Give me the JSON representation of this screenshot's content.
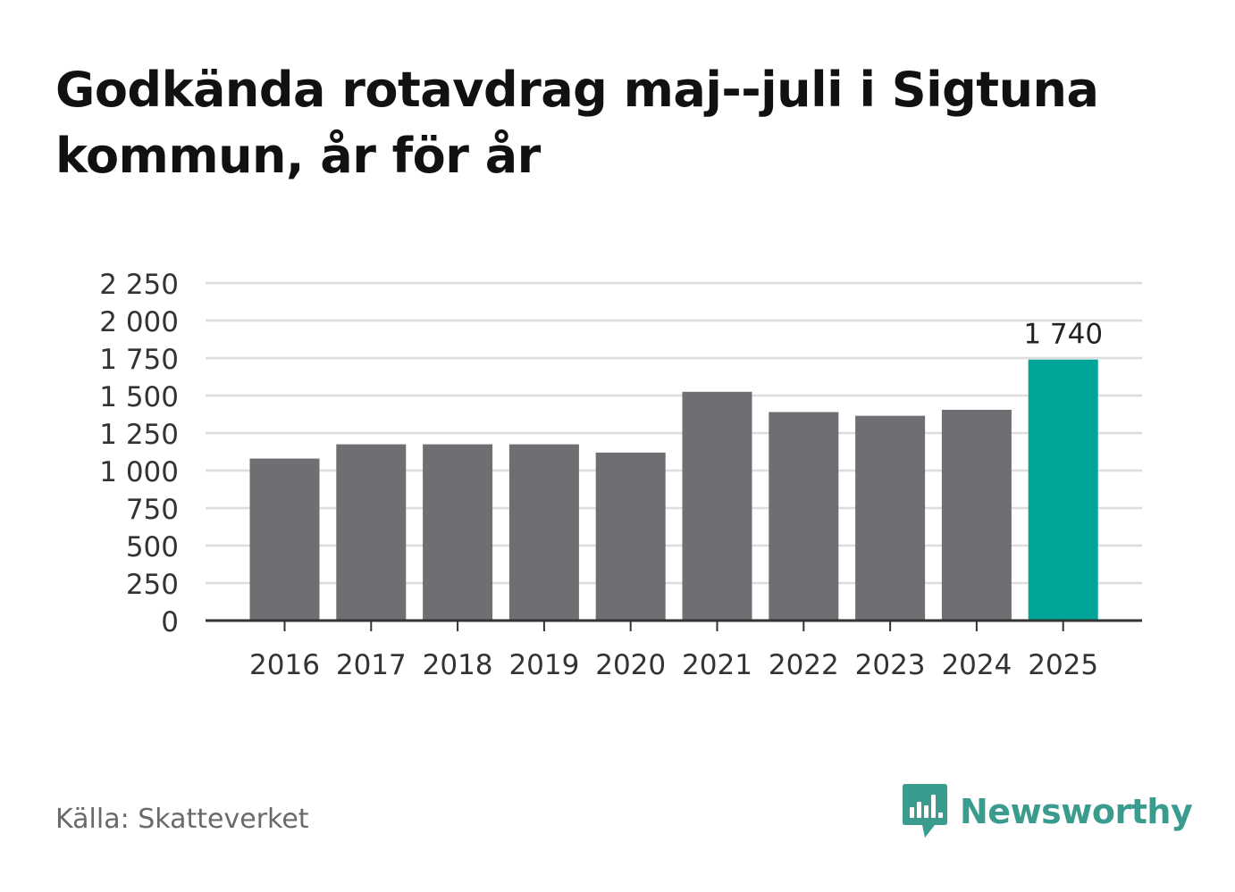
{
  "title": "Godkända rotavdrag maj--juli i Sigtuna kommun, år för år",
  "source": "Källa: Skatteverket",
  "brand": {
    "name": "Newsworthy",
    "logo_icon": "bar-chart-speech-bubble-icon",
    "color": "#3a9c8e"
  },
  "colors": {
    "bar": "#6f6e73",
    "highlight": "#00a599",
    "grid": "#dddddd",
    "axis": "#333333",
    "text": "#333333"
  },
  "chart_data": {
    "type": "bar",
    "categories": [
      "2016",
      "2017",
      "2018",
      "2019",
      "2020",
      "2021",
      "2022",
      "2023",
      "2024",
      "2025"
    ],
    "values": [
      1080,
      1175,
      1175,
      1175,
      1120,
      1525,
      1390,
      1365,
      1405,
      1740
    ],
    "highlight_index": 9,
    "highlight_label": "1 740",
    "ylim": [
      0,
      2250
    ],
    "yticks": [
      0,
      250,
      500,
      750,
      1000,
      1250,
      1500,
      1750,
      2000,
      2250
    ],
    "ytick_labels": [
      "0",
      "250",
      "500",
      "750",
      "1 000",
      "1 250",
      "1 500",
      "1 750",
      "2 000",
      "2 250"
    ],
    "grid": true,
    "xlabel": "",
    "ylabel": ""
  }
}
